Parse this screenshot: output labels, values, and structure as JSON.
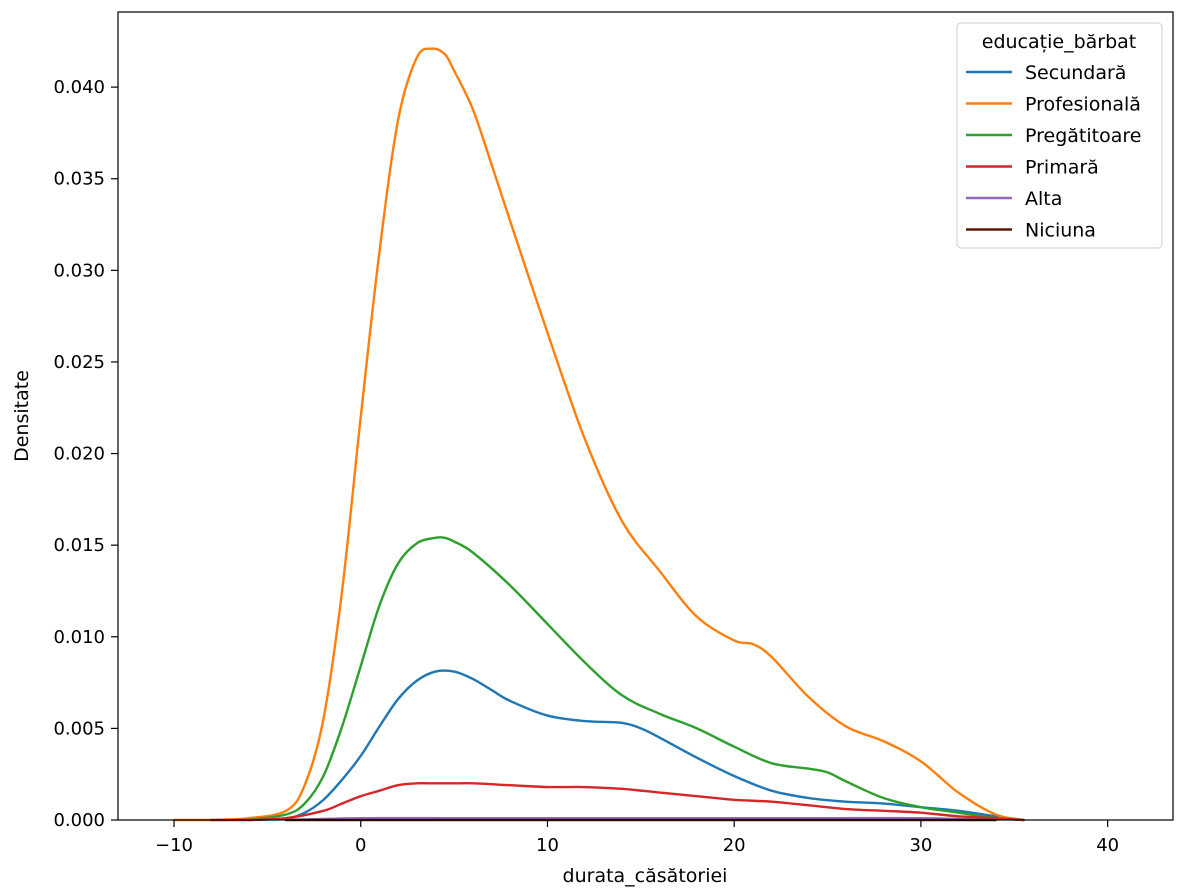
{
  "chart_data": {
    "type": "line",
    "xlabel": "durata_căsătoriei",
    "ylabel": "Densitate",
    "xlim": [
      -13,
      43.5
    ],
    "ylim": [
      0,
      0.0441
    ],
    "xticks": [
      -10,
      0,
      10,
      20,
      30,
      40
    ],
    "xtick_labels": [
      "−10",
      "0",
      "10",
      "20",
      "30",
      "40"
    ],
    "yticks": [
      0,
      0.005,
      0.01,
      0.015,
      0.02,
      0.025,
      0.03,
      0.035,
      0.04
    ],
    "ytick_labels": [
      "0.000",
      "0.005",
      "0.010",
      "0.015",
      "0.020",
      "0.025",
      "0.030",
      "0.035",
      "0.040"
    ],
    "grid": false,
    "legend": {
      "title": "educație_bărbat",
      "position": "top-right"
    },
    "series": [
      {
        "name": "Secundară",
        "color": "#1f77b4",
        "x": [
          -6,
          -4,
          -3,
          -2,
          -1,
          0,
          1,
          2,
          3,
          4,
          5,
          6,
          7,
          8,
          10,
          12,
          14,
          15,
          16,
          18,
          20,
          22,
          24,
          26,
          28,
          30,
          32,
          34,
          35.5
        ],
        "y": [
          0,
          0.0001,
          0.0004,
          0.0011,
          0.0022,
          0.0035,
          0.0051,
          0.0066,
          0.0076,
          0.0081,
          0.0081,
          0.0077,
          0.0071,
          0.0065,
          0.0057,
          0.0054,
          0.0053,
          0.005,
          0.0045,
          0.0034,
          0.0024,
          0.0016,
          0.0012,
          0.001,
          0.0009,
          0.0007,
          0.0005,
          0.0002,
          0
        ]
      },
      {
        "name": "Profesională",
        "color": "#ff7f0e",
        "x": [
          -10,
          -8,
          -6,
          -4,
          -3,
          -2,
          -1,
          0,
          1,
          2,
          3,
          3.8,
          4.5,
          5,
          6,
          7,
          8,
          10,
          12,
          14,
          16,
          18,
          20,
          21,
          22,
          24,
          26,
          28,
          30,
          32,
          34,
          35.5
        ],
        "y": [
          0,
          0,
          0.0001,
          0.0005,
          0.0019,
          0.0055,
          0.0125,
          0.022,
          0.031,
          0.0382,
          0.0416,
          0.0421,
          0.0418,
          0.0409,
          0.0388,
          0.0358,
          0.0327,
          0.0266,
          0.0208,
          0.0163,
          0.0136,
          0.0111,
          0.0098,
          0.0096,
          0.0089,
          0.0067,
          0.0051,
          0.0043,
          0.0032,
          0.0015,
          0.0003,
          0
        ]
      },
      {
        "name": "Pregătitoare",
        "color": "#2ca02c",
        "x": [
          -6,
          -4,
          -3,
          -2,
          -1,
          0,
          1,
          2,
          3,
          4,
          4.5,
          5,
          6,
          8,
          10,
          12,
          14,
          16,
          18,
          20,
          22,
          24,
          25,
          26,
          28,
          30,
          32,
          34,
          35.5
        ],
        "y": [
          0,
          0.0003,
          0.0009,
          0.0024,
          0.0051,
          0.0084,
          0.0117,
          0.014,
          0.0151,
          0.0154,
          0.0154,
          0.0152,
          0.0146,
          0.0128,
          0.0107,
          0.0086,
          0.0068,
          0.0058,
          0.005,
          0.004,
          0.0031,
          0.0028,
          0.0026,
          0.0021,
          0.0012,
          0.0007,
          0.0004,
          0.0001,
          0
        ]
      },
      {
        "name": "Primară",
        "color": "#d62728",
        "x": [
          -8,
          -6,
          -4,
          -2,
          -1,
          0,
          1,
          2,
          3,
          4,
          5,
          6,
          8,
          10,
          12,
          14,
          16,
          18,
          20,
          22,
          24,
          26,
          28,
          30,
          32,
          34,
          35.5
        ],
        "y": [
          0,
          0,
          0.0001,
          0.0005,
          0.0009,
          0.0013,
          0.0016,
          0.0019,
          0.002,
          0.002,
          0.002,
          0.002,
          0.0019,
          0.0018,
          0.0018,
          0.0017,
          0.0015,
          0.0013,
          0.0011,
          0.001,
          0.0008,
          0.0006,
          0.0005,
          0.0004,
          0.0002,
          0.0001,
          0
        ]
      },
      {
        "name": "Alta",
        "color": "#9467bd",
        "x": [
          -4,
          0,
          5,
          10,
          15,
          20,
          25,
          30,
          34
        ],
        "y": [
          0,
          0.0001,
          0.0001,
          0.0001,
          0.0001,
          0.0001,
          0.0001,
          0.0001,
          0
        ]
      },
      {
        "name": "Niciuna",
        "color": "#5c1a0b",
        "x": [
          -4,
          0,
          5,
          10,
          15,
          20,
          25,
          30,
          34
        ],
        "y": [
          0,
          0,
          0,
          0,
          0,
          0,
          0,
          0,
          0
        ]
      }
    ]
  }
}
